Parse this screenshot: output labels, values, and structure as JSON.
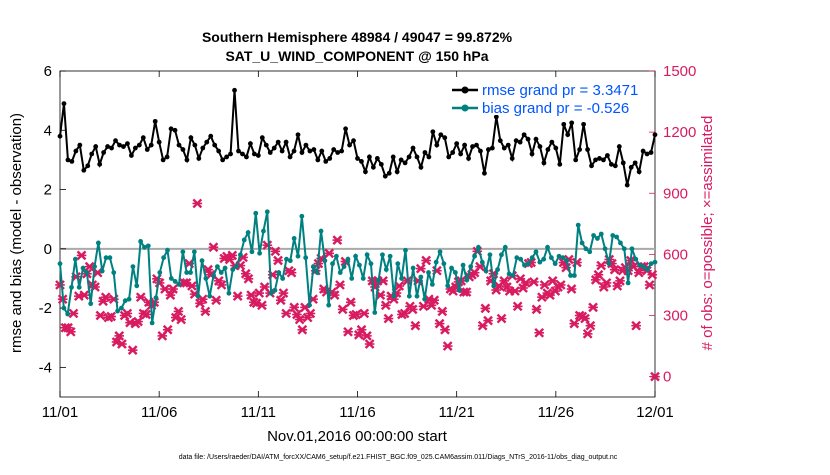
{
  "chart_data": {
    "type": "line",
    "title_line1": "Southern Hemisphere 48984 / 49047 = 99.872%",
    "title_line2": "SAT_U_WIND_COMPONENT @ 150 hPa",
    "xlabel": "Nov.01,2016 00:00:00 start",
    "ylabel_left": "rmse and bias (model - observation)",
    "ylabel_right": "# of obs: o=possible; ×=assimilated",
    "footer": "data file: /Users/raeder/DAI/ATM_forcXX/CAM6_setup/f.e21.FHIST_BGC.f09_025.CAM6assim.011/Diags_NTrS_2016-11/obs_diag_output.nc",
    "xlim": [
      0,
      30
    ],
    "ylim_left": [
      -5,
      6
    ],
    "ylim_right": [
      -100,
      1500
    ],
    "x_ticks": [
      0,
      5,
      10,
      15,
      20,
      25,
      30
    ],
    "x_tick_labels": [
      "11/01",
      "11/06",
      "11/11",
      "11/16",
      "11/21",
      "11/26",
      "12/01"
    ],
    "y_left_ticks": [
      -4,
      -2,
      0,
      2,
      4,
      6
    ],
    "y_left_tick_labels": [
      "-4",
      "-2",
      "0",
      "2",
      "4",
      "6"
    ],
    "y_right_ticks": [
      0,
      300,
      600,
      900,
      1200,
      1500
    ],
    "y_right_tick_labels": [
      "0",
      "300",
      "600",
      "900",
      "1200",
      "1500"
    ],
    "legend": [
      {
        "label": "rmse grand pr = 3.3471",
        "color": "#000000"
      },
      {
        "label": "bias grand pr = -0.526",
        "color": "#008080"
      }
    ],
    "colors": {
      "rmse": "#000000",
      "bias": "#008080",
      "obs": "#d81b60",
      "zero_line": "#aaaaaa",
      "label_left": "#000000",
      "label_right": "#d81b60",
      "legend_text": "#0055ff"
    },
    "time_step_days": 0.25,
    "series": [
      {
        "name": "rmse",
        "axis": "left",
        "values": [
          3.8,
          4.9,
          3.0,
          2.95,
          3.3,
          3.5,
          2.65,
          2.8,
          3.2,
          3.45,
          2.85,
          3.25,
          3.45,
          3.4,
          3.65,
          3.5,
          3.45,
          3.55,
          3.15,
          3.4,
          3.5,
          3.75,
          3.35,
          3.5,
          4.3,
          3.6,
          3.0,
          3.1,
          4.05,
          4.0,
          3.5,
          3.35,
          3.0,
          3.75,
          3.5,
          3.05,
          3.4,
          3.6,
          3.8,
          3.5,
          3.3,
          3.0,
          3.1,
          3.2,
          5.35,
          3.3,
          3.2,
          3.1,
          3.55,
          3.2,
          3.15,
          3.75,
          3.5,
          3.25,
          3.4,
          3.6,
          3.3,
          3.6,
          3.1,
          3.3,
          3.85,
          3.25,
          3.5,
          3.3,
          3.35,
          3.0,
          3.3,
          2.95,
          3.05,
          3.35,
          3.25,
          3.3,
          4.05,
          3.5,
          3.65,
          3.05,
          2.95,
          2.6,
          3.1,
          2.75,
          3.05,
          2.85,
          2.45,
          2.55,
          3.1,
          2.6,
          3.0,
          2.9,
          3.1,
          3.4,
          3.1,
          2.75,
          3.25,
          3.1,
          3.95,
          3.5,
          3.85,
          3.75,
          3.1,
          3.25,
          3.55,
          3.2,
          3.5,
          3.05,
          3.45,
          3.5,
          3.3,
          2.55,
          3.35,
          3.4,
          4.45,
          3.65,
          3.4,
          3.5,
          3.05,
          3.65,
          3.6,
          3.85,
          3.7,
          3.2,
          3.7,
          3.45,
          2.9,
          3.35,
          3.6,
          3.4,
          2.85,
          4.2,
          3.85,
          4.25,
          3.0,
          3.35,
          4.2,
          3.35,
          2.8,
          3.0,
          3.05,
          3.0,
          3.15,
          2.85,
          2.8,
          3.45,
          2.9,
          2.15,
          2.75,
          2.9,
          2.6,
          3.3,
          3.2,
          3.25,
          3.85
        ],
        "markers": true
      },
      {
        "name": "bias",
        "axis": "left",
        "values": [
          -0.5,
          -2.0,
          -2.2,
          -1.3,
          -0.35,
          -1.3,
          -0.65,
          -0.8,
          -1.85,
          -0.6,
          0.2,
          -0.75,
          -0.3,
          -0.3,
          -0.8,
          -2.1,
          -2.0,
          -1.75,
          -1.7,
          -0.6,
          -1.25,
          0.25,
          0.05,
          0.1,
          -2.5,
          -1.65,
          -0.8,
          -0.3,
          -0.05,
          -1.0,
          -1.1,
          -1.2,
          -0.1,
          -0.8,
          -0.8,
          -0.1,
          -1.6,
          -0.4,
          -1.0,
          -1.6,
          -0.9,
          -0.6,
          -0.8,
          -0.65,
          -1.5,
          -0.7,
          -0.6,
          -0.2,
          0.3,
          0.55,
          -0.1,
          1.2,
          -0.15,
          0.6,
          1.25,
          -1.5,
          -1.4,
          -0.8,
          -1.0,
          -0.35,
          -0.4,
          0.35,
          -0.25,
          1.1,
          -0.3,
          -1.9,
          -0.6,
          -0.8,
          0.6,
          -0.4,
          -1.9,
          -0.5,
          -0.25,
          -0.8,
          -0.6,
          -0.35,
          -1.0,
          -0.25,
          -0.55,
          -1.0,
          -0.2,
          -0.5,
          -2.15,
          -1.05,
          -0.2,
          -0.7,
          -0.25,
          -1.6,
          -0.5,
          -1.0,
          -0.05,
          -1.6,
          -0.65,
          -1.6,
          -0.95,
          -1.7,
          -0.8,
          -1.2,
          -0.45,
          -0.1,
          -0.5,
          -1.25,
          -0.65,
          -0.8,
          -1.4,
          -0.55,
          -1.05,
          -0.6,
          -0.25,
          0.05,
          -0.45,
          -0.75,
          -0.2,
          -1.25,
          -0.7,
          -0.2,
          0.05,
          -0.85,
          -0.9,
          -0.3,
          -0.35,
          -0.55,
          -0.5,
          -0.3,
          -0.1,
          -0.45,
          -0.35,
          0.05,
          -0.3,
          -0.5,
          -0.25,
          -0.3,
          -0.4,
          -0.9,
          -0.9,
          0.8,
          0.2,
          0.0,
          -0.1,
          0.45,
          0.35,
          0.5,
          0.0,
          -0.5,
          0.45,
          0.4,
          0.2,
          0.0,
          -1.15,
          0.0,
          -0.35,
          -0.55,
          -0.6,
          -0.7,
          -0.5,
          -0.45
        ],
        "markers": true
      },
      {
        "name": "obs_assimilated",
        "axis": "right",
        "values": [
          450,
          380,
          240,
          240,
          220,
          310,
          490,
          395,
          595,
          400,
          505,
          540,
          450,
          440,
          510,
          300,
          370,
          390,
          290,
          295,
          380,
          170,
          200,
          160,
          300,
          310,
          265,
          130,
          260,
          270,
          390,
          310,
          305,
          365,
          350,
          365,
          480,
          460,
          200,
          430,
          230,
          400,
          430,
          290,
          320,
          280,
          460,
          460,
          555,
          445,
          405,
          850,
          360,
          380,
          320,
          525,
          500,
          635,
          375,
          470,
          450,
          580,
          590,
          575,
          595,
          545,
          395,
          545,
          585,
          505,
          480,
          400,
          365,
          360,
          410,
          350,
          440,
          645,
          410,
          500,
          615,
          570,
          375,
          410,
          310,
          520,
          510,
          340,
          305,
          280,
          230,
          340,
          290,
          310,
          380,
          520,
          555,
          580,
          430,
          415,
          605,
          415,
          400,
          670,
          450,
          330,
          565,
          220,
          365,
          300,
          305,
          205,
          230,
          310,
          200,
          160,
          470,
          440,
          470,
          400,
          470,
          350,
          285,
          395,
          380,
          410,
          445,
          305,
          310,
          470,
          345,
          330,
          250,
          470,
          530,
          345,
          570,
          380,
          350,
          375,
          520,
          260,
          320,
          230,
          150,
          430,
          420,
          440,
          465,
          470,
          415,
          415,
          490,
          500,
          510,
          615,
          540,
          250,
          335,
          275,
          470,
          505,
          425,
          445,
          285,
          470,
          440,
          420,
          495,
          420,
          345,
          480,
          435,
          460,
          555,
          560,
          465,
          330,
          215,
          390,
          450,
          410,
          400,
          470,
          420,
          440,
          450,
          560,
          535,
          575,
          430,
          260,
          560,
          300,
          295,
          285,
          210,
          250,
          340,
          475,
          500,
          545,
          440,
          460,
          575,
          555,
          525,
          445,
          470,
          520,
          535,
          520,
          570,
          540,
          250,
          510,
          540,
          540,
          520,
          450,
          500,
          0
        ],
        "markers": true
      }
    ]
  }
}
